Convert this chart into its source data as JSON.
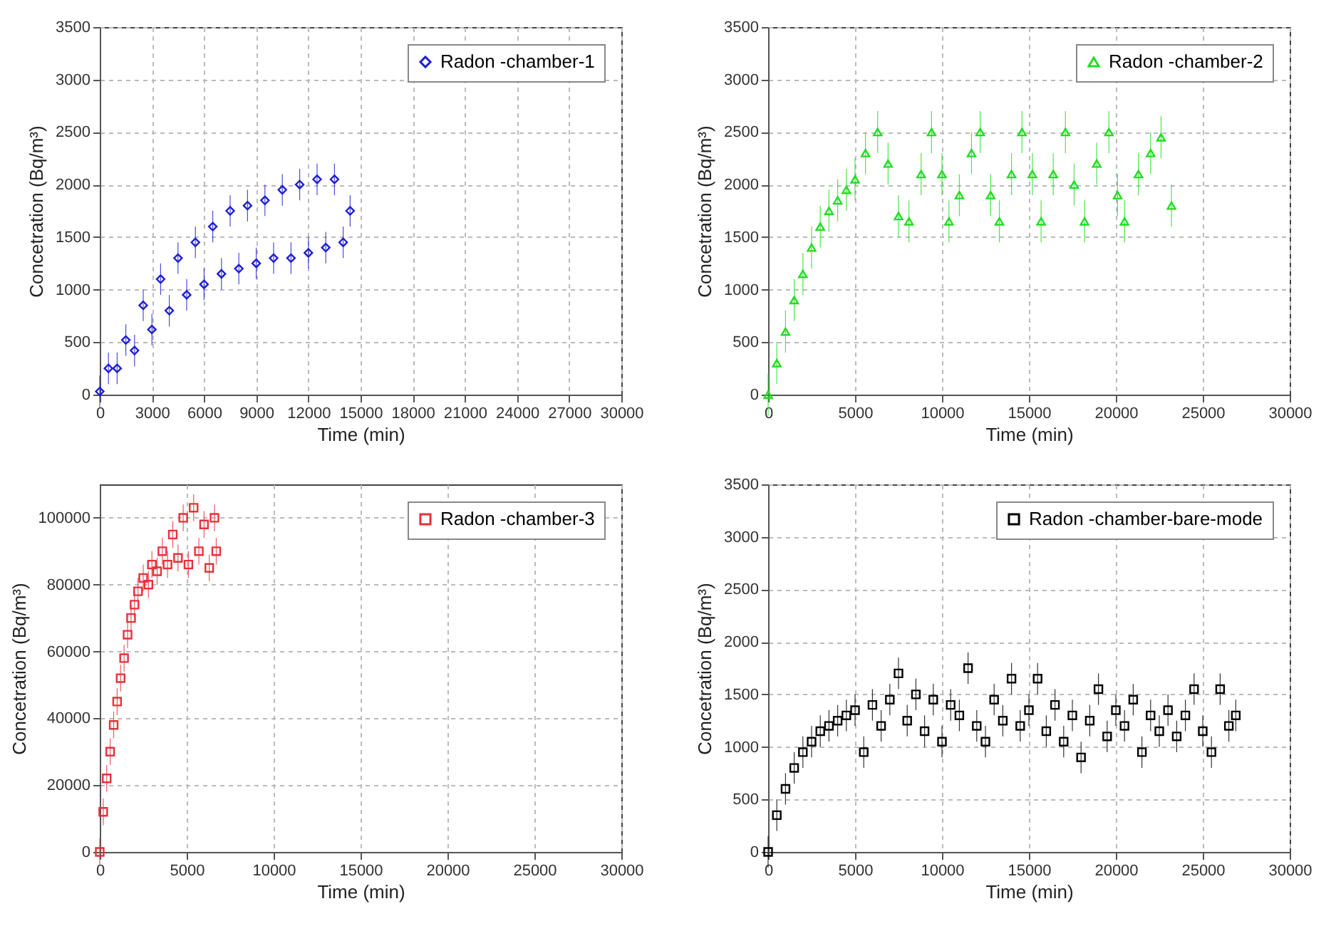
{
  "chart_data": [
    {
      "type": "scatter",
      "xlabel": "Time (min)",
      "ylabel": "Concetration (Bq/m³)",
      "xlim": [
        0,
        30000
      ],
      "xticks": [
        0,
        3000,
        6000,
        9000,
        12000,
        15000,
        18000,
        21000,
        24000,
        27000,
        30000
      ],
      "ylim": [
        0,
        3500
      ],
      "yticks": [
        0,
        500,
        1000,
        1500,
        2000,
        2500,
        3000,
        3500
      ],
      "grid": true,
      "legend": "top right",
      "marker": "diamond",
      "series": [
        {
          "name": "Radon -chamber-1",
          "color": "#1f1fd6",
          "x": [
            0,
            500,
            1000,
            1500,
            2000,
            2500,
            3000,
            3500,
            4000,
            4500,
            5000,
            5500,
            6000,
            6500,
            7000,
            7500,
            8000,
            8500,
            9000,
            9500,
            10000,
            10500,
            11000,
            11500,
            12000,
            12500,
            13000,
            13500,
            14000,
            14400
          ],
          "values": [
            30,
            250,
            250,
            520,
            420,
            850,
            620,
            1100,
            800,
            1300,
            950,
            1450,
            1050,
            1600,
            1150,
            1750,
            1200,
            1800,
            1250,
            1850,
            1300,
            1950,
            1300,
            2000,
            1350,
            2050,
            1400,
            2050,
            1450,
            1750
          ],
          "errors": [
            150,
            150,
            150,
            150,
            150,
            150,
            150,
            150,
            150,
            150,
            150,
            150,
            150,
            150,
            150,
            150,
            150,
            150,
            150,
            150,
            150,
            150,
            150,
            150,
            150,
            150,
            150,
            150,
            150,
            150
          ]
        }
      ]
    },
    {
      "type": "scatter",
      "xlabel": "Time (min)",
      "ylabel": "Concetration (Bq/m³)",
      "xlim": [
        0,
        30000
      ],
      "xticks": [
        0,
        5000,
        10000,
        15000,
        20000,
        25000,
        30000
      ],
      "ylim": [
        0,
        3500
      ],
      "yticks": [
        0,
        500,
        1000,
        1500,
        2000,
        2500,
        3000,
        3500
      ],
      "grid": true,
      "legend": "top right",
      "marker": "triangle",
      "series": [
        {
          "name": "Radon -chamber-2",
          "color": "#22dd22",
          "x": [
            0,
            500,
            1000,
            1500,
            2000,
            2500,
            3000,
            3500,
            4000,
            4500,
            5000,
            5600,
            6300,
            6900,
            7500,
            8100,
            8800,
            9400,
            10000,
            10400,
            11000,
            11700,
            12200,
            12800,
            13300,
            14000,
            14600,
            15200,
            15700,
            16400,
            17100,
            17600,
            18200,
            18900,
            19600,
            20100,
            20500,
            21300,
            22000,
            22600,
            23200
          ],
          "values": [
            0,
            300,
            600,
            900,
            1150,
            1400,
            1600,
            1750,
            1850,
            1950,
            2050,
            2300,
            2500,
            2200,
            1700,
            1650,
            2100,
            2500,
            2100,
            1650,
            1900,
            2300,
            2500,
            1900,
            1650,
            2100,
            2500,
            2100,
            1650,
            2100,
            2500,
            2000,
            1650,
            2200,
            2500,
            1900,
            1650,
            2100,
            2300,
            2450,
            1800
          ],
          "errors": [
            200,
            200,
            200,
            200,
            200,
            200,
            200,
            200,
            200,
            200,
            200,
            200,
            200,
            200,
            200,
            200,
            200,
            200,
            200,
            200,
            200,
            200,
            200,
            200,
            200,
            200,
            200,
            200,
            200,
            200,
            200,
            200,
            200,
            200,
            200,
            200,
            200,
            200,
            200,
            200,
            200
          ]
        }
      ]
    },
    {
      "type": "scatter",
      "xlabel": "Time (min)",
      "ylabel": "Concetration (Bq/m³)",
      "xlim": [
        0,
        30000
      ],
      "xticks": [
        0,
        5000,
        10000,
        15000,
        20000,
        25000,
        30000
      ],
      "ylim": [
        0,
        110000
      ],
      "yticks": [
        0,
        20000,
        40000,
        60000,
        80000,
        100000
      ],
      "grid": true,
      "legend": "top right",
      "marker": "square",
      "series": [
        {
          "name": "Radon -chamber-3",
          "color": "#e8303a",
          "x": [
            0,
            200,
            400,
            600,
            800,
            1000,
            1200,
            1400,
            1600,
            1800,
            2000,
            2200,
            2500,
            2800,
            3000,
            3300,
            3600,
            3900,
            4200,
            4500,
            4800,
            5100,
            5400,
            5700,
            6000,
            6300,
            6600,
            6700
          ],
          "values": [
            0,
            12000,
            22000,
            30000,
            38000,
            45000,
            52000,
            58000,
            65000,
            70000,
            74000,
            78000,
            82000,
            80000,
            86000,
            84000,
            90000,
            86000,
            95000,
            88000,
            100000,
            86000,
            103000,
            90000,
            98000,
            85000,
            100000,
            90000
          ],
          "errors": [
            4000,
            4000,
            4000,
            4000,
            4000,
            4000,
            4000,
            4000,
            4000,
            4000,
            4000,
            4000,
            4000,
            4000,
            4000,
            4000,
            4000,
            4000,
            4000,
            4000,
            4000,
            4000,
            4000,
            4000,
            4000,
            4000,
            4000,
            4000
          ]
        }
      ]
    },
    {
      "type": "scatter",
      "xlabel": "Time (min)",
      "ylabel": "Concetration (Bq/m³)",
      "xlim": [
        0,
        30000
      ],
      "xticks": [
        0,
        5000,
        10000,
        15000,
        20000,
        25000,
        30000
      ],
      "ylim": [
        0,
        3500
      ],
      "yticks": [
        0,
        500,
        1000,
        1500,
        2000,
        2500,
        3000,
        3500
      ],
      "grid": true,
      "legend": "top right",
      "marker": "square",
      "series": [
        {
          "name": "Radon -chamber-bare-mode",
          "color": "#000000",
          "x": [
            0,
            500,
            1000,
            1500,
            2000,
            2500,
            3000,
            3500,
            4000,
            4500,
            5000,
            5500,
            6000,
            6500,
            7000,
            7500,
            8000,
            8500,
            9000,
            9500,
            10000,
            10500,
            11000,
            11500,
            12000,
            12500,
            13000,
            13500,
            14000,
            14500,
            15000,
            15500,
            16000,
            16500,
            17000,
            17500,
            18000,
            18500,
            19000,
            19500,
            20000,
            20500,
            21000,
            21500,
            22000,
            22500,
            23000,
            23500,
            24000,
            24500,
            25000,
            25500,
            26000,
            26500,
            26900
          ],
          "values": [
            0,
            350,
            600,
            800,
            950,
            1050,
            1150,
            1200,
            1250,
            1300,
            1350,
            950,
            1400,
            1200,
            1450,
            1700,
            1250,
            1500,
            1150,
            1450,
            1050,
            1400,
            1300,
            1750,
            1200,
            1050,
            1450,
            1250,
            1650,
            1200,
            1350,
            1650,
            1150,
            1400,
            1050,
            1300,
            900,
            1250,
            1550,
            1100,
            1350,
            1200,
            1450,
            950,
            1300,
            1150,
            1350,
            1100,
            1300,
            1550,
            1150,
            950,
            1550,
            1200,
            1300
          ],
          "errors": [
            150,
            150,
            150,
            150,
            150,
            150,
            150,
            150,
            150,
            150,
            150,
            150,
            150,
            150,
            150,
            150,
            150,
            150,
            150,
            150,
            150,
            150,
            150,
            150,
            150,
            150,
            150,
            150,
            150,
            150,
            150,
            150,
            150,
            150,
            150,
            150,
            150,
            150,
            150,
            150,
            150,
            150,
            150,
            150,
            150,
            150,
            150,
            150,
            150,
            150,
            150,
            150,
            150,
            150,
            150
          ]
        }
      ]
    }
  ]
}
